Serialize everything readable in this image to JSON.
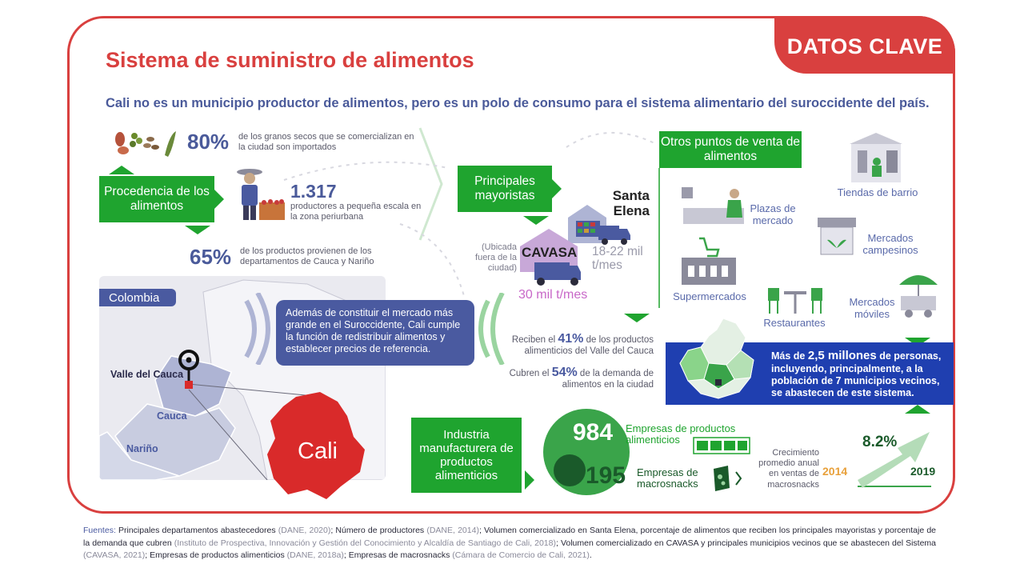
{
  "badge": "DATOS CLAVE",
  "title": "Sistema de suministro de alimentos",
  "subtitle": "Cali no es un municipio productor de alimentos, pero es un polo de consumo para el sistema alimentario del suroccidente del país.",
  "procedencia": {
    "label": "Procedencia de los alimentos",
    "granos_pct": "80%",
    "granos_text": "de los granos secos que se comercializan en la ciudad son importados",
    "productores_num": "1.317",
    "productores_text": "productores a pequeña escala en la zona periurbana",
    "cauca_pct": "65%",
    "cauca_text": "de los productos provienen de los departamentos de Cauca y Nariño"
  },
  "map": {
    "colombia": "Colombia",
    "valle": "Valle del Cauca",
    "cauca": "Cauca",
    "narino": "Nariño",
    "cali": "Cali",
    "bubble_text": "Además de constituir el mercado más grande en el Suroccidente, Cali cumple la función de redistribuir alimentos y establecer precios de referencia."
  },
  "mayoristas": {
    "label": "Principales mayoristas",
    "santa_elena": "Santa Elena",
    "santa_elena_vol": "18-22 mil t/mes",
    "cavasa": "CAVASA",
    "cavasa_note": "(Ubicada fuera de la ciudad)",
    "cavasa_vol": "30 mil t/mes",
    "reciben_pre": "Reciben el",
    "reciben_pct": "41%",
    "reciben_post": "de los productos alimenticios del Valle del Cauca",
    "cubren_pre": "Cubren el",
    "cubren_pct": "54%",
    "cubren_post": "de la demanda de alimentos en la ciudad"
  },
  "otros": {
    "label": "Otros puntos de venta de alimentos",
    "tiendas": "Tiendas de barrio",
    "plazas": "Plazas de mercado",
    "campesinos": "Mercados campesinos",
    "supermercados": "Supermercados",
    "restaurantes": "Restaurantes",
    "moviles": "Mercados móviles"
  },
  "abastecen": {
    "pre": "Más de",
    "num": "2,5 millones",
    "post": "de personas, incluyendo, principalmente, a la población de 7 municipios vecinos, se abastecen de este sistema."
  },
  "industria": {
    "label": "Industria manufacturera de productos alimenticios",
    "empresas_num": "984",
    "empresas_text": "Empresas de productos alimenticios",
    "macro_num": "195",
    "macro_text": "Empresas de macrosnacks",
    "crecimiento_text": "Crecimiento promedio anual en ventas de macrosnacks",
    "crecimiento_pct": "8.2%",
    "year_start": "2014",
    "year_end": "2019"
  },
  "sources": {
    "head": "Fuentes:",
    "s1": " Principales departamentos abastecedores ",
    "c1": "(DANE, 2020)",
    "s2": "; Número de productores ",
    "c2": "(DANE, 2014)",
    "s3": "; Volumen comercializado en Santa Elena, porcentaje de alimentos que reciben los principales mayoristas y porcentaje de la demanda que cubren ",
    "c3": "(Instituto de Prospectiva, Innovación y Gestión del Conocimiento y Alcaldía de Santiago de Cali, 2018)",
    "s4": "; Volumen comercializado en CAVASA y principales municipios vecinos que se abastecen del Sistema ",
    "c4": "(CAVASA, 2021)",
    "s5": "; Empresas de productos alimenticios ",
    "c5": "(DANE, 2018a)",
    "s6": "; Empresas de macrosnacks ",
    "c6": "(Cámara de Comercio de Cali, 2021)",
    "s7": "."
  },
  "colors": {
    "red": "#d9403f",
    "green": "#1fa42f",
    "blue": "#4a5aa0",
    "deep_blue": "#1f3fb0"
  }
}
